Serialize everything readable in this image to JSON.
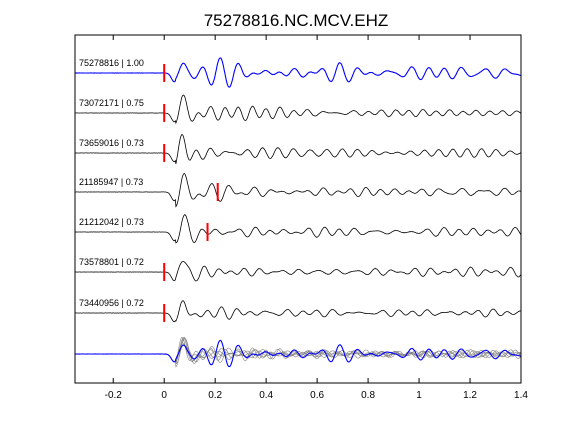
{
  "chart_data": {
    "type": "line",
    "title": "75278816.NC.MCV.EHZ",
    "xlabel": "",
    "ylabel": "",
    "xlim": [
      -0.35,
      1.4
    ],
    "x_ticks": [
      -0.2,
      0,
      0.2,
      0.4,
      0.6,
      0.8,
      1.0,
      1.2,
      1.4
    ],
    "x_tick_labels": [
      "-0.2",
      "0",
      "0.2",
      "0.4",
      "0.6",
      "0.8",
      "1",
      "1.2",
      "1.4"
    ],
    "grid": false,
    "colors": {
      "reference_trace": "#0000ff",
      "trace": "#000000",
      "stack_trace": "#808080",
      "pick_marker": "#ff0000"
    },
    "trace_start_x": -0.35,
    "traces": [
      {
        "label": "75278816 | 1.00",
        "event_id": "75278816",
        "cc": 1.0,
        "pick_time": 0.0,
        "reference": true
      },
      {
        "label": "73072171 | 0.75",
        "event_id": "73072171",
        "cc": 0.75,
        "pick_time": 0.0,
        "reference": false
      },
      {
        "label": "73659016 | 0.73",
        "event_id": "73659016",
        "cc": 0.73,
        "pick_time": 0.0,
        "reference": false
      },
      {
        "label": "21185947 | 0.73",
        "event_id": "21185947",
        "cc": 0.73,
        "pick_time": 0.21,
        "reference": false
      },
      {
        "label": "21212042 | 0.73",
        "event_id": "21212042",
        "cc": 0.73,
        "pick_time": 0.17,
        "reference": false
      },
      {
        "label": "73578801 | 0.72",
        "event_id": "73578801",
        "cc": 0.72,
        "pick_time": 0.0,
        "reference": false
      },
      {
        "label": "73440956 | 0.72",
        "event_id": "73440956",
        "cc": 0.72,
        "pick_time": 0.0,
        "reference": false
      }
    ],
    "stacked_overlay": {
      "reference_color": "#0000ff",
      "others_color": "#808080"
    }
  }
}
